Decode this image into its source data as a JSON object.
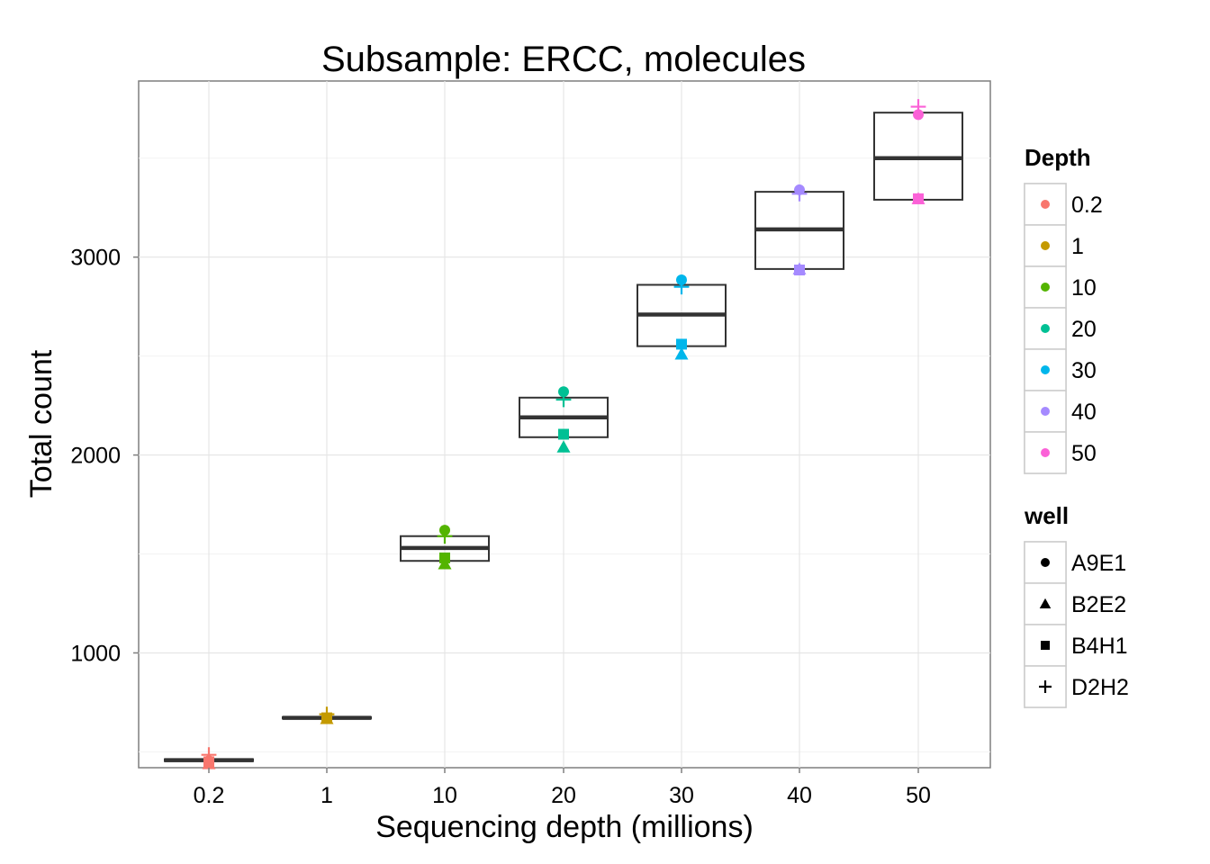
{
  "chart_data": {
    "type": "box",
    "title": "Subsample: ERCC, molecules",
    "xlabel": "Sequencing depth (millions)",
    "ylabel": "Total count",
    "categories": [
      "0.2",
      "1",
      "10",
      "20",
      "30",
      "40",
      "50"
    ],
    "ylim": [
      420,
      3890
    ],
    "yticks": [
      1000,
      2000,
      3000
    ],
    "grid": true,
    "boxes": [
      {
        "category": "0.2",
        "q1": 453,
        "median": 458,
        "q3": 463
      },
      {
        "category": "1",
        "q1": 668,
        "median": 672,
        "q3": 676
      },
      {
        "category": "10",
        "q1": 1465,
        "median": 1530,
        "q3": 1590
      },
      {
        "category": "20",
        "q1": 2090,
        "median": 2190,
        "q3": 2290
      },
      {
        "category": "30",
        "q1": 2550,
        "median": 2710,
        "q3": 2860
      },
      {
        "category": "40",
        "q1": 2940,
        "median": 3140,
        "q3": 3330
      },
      {
        "category": "50",
        "q1": 3290,
        "median": 3500,
        "q3": 3730
      }
    ],
    "series": [
      {
        "name": "A9E1",
        "shape": "circle",
        "values": [
          455,
          670,
          1620,
          2320,
          2885,
          3340,
          3720
        ]
      },
      {
        "name": "B2E2",
        "shape": "triangle",
        "values": [
          440,
          668,
          1450,
          2040,
          2510,
          2940,
          3295
        ]
      },
      {
        "name": "B4H1",
        "shape": "square",
        "values": [
          450,
          672,
          1480,
          2105,
          2560,
          2935,
          3295
        ]
      },
      {
        "name": "D2H2",
        "shape": "plus",
        "values": [
          485,
          690,
          1590,
          2280,
          2850,
          3320,
          3760
        ]
      }
    ],
    "legend": {
      "placement": "right",
      "color": {
        "title": "Depth",
        "items": [
          {
            "label": "0.2",
            "color": "#F8766D"
          },
          {
            "label": "1",
            "color": "#C49A00"
          },
          {
            "label": "10",
            "color": "#53B400"
          },
          {
            "label": "20",
            "color": "#00C094"
          },
          {
            "label": "30",
            "color": "#00B6EB"
          },
          {
            "label": "40",
            "color": "#A58AFF"
          },
          {
            "label": "50",
            "color": "#FB61D7"
          }
        ]
      },
      "shape": {
        "title": "well",
        "items": [
          {
            "label": "A9E1",
            "shape": "circle"
          },
          {
            "label": "B2E2",
            "shape": "triangle"
          },
          {
            "label": "B4H1",
            "shape": "square"
          },
          {
            "label": "D2H2",
            "shape": "plus"
          }
        ]
      }
    }
  }
}
